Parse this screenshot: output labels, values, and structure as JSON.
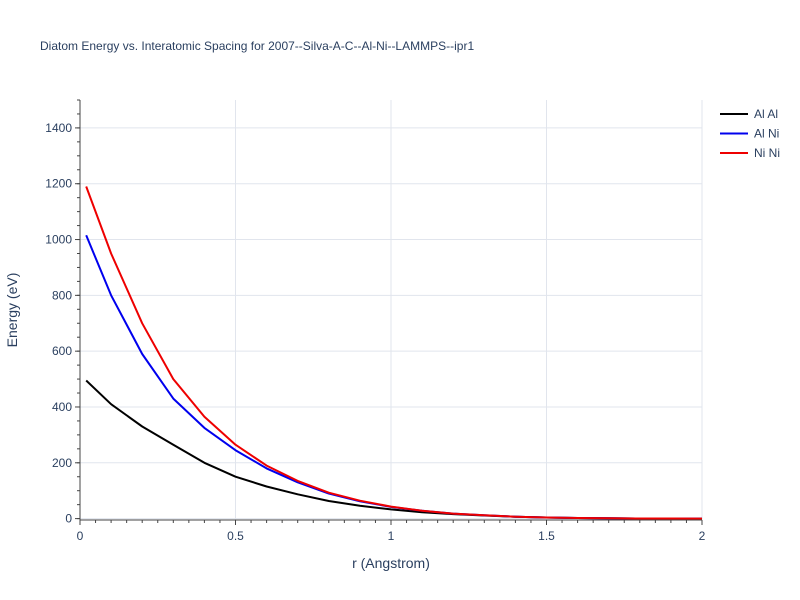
{
  "chart_data": {
    "type": "line",
    "title": "Diatom Energy vs. Interatomic Spacing for 2007--Silva-A-C--Al-Ni--LAMMPS--ipr1",
    "xlabel": "r (Angstrom)",
    "ylabel": "Energy (eV)",
    "xlim": [
      0,
      2
    ],
    "ylim": [
      -5,
      1500
    ],
    "x_ticks": [
      0,
      0.5,
      1,
      1.5,
      2
    ],
    "x_tick_labels": [
      "0",
      "0.5",
      "1",
      "1.5",
      "2"
    ],
    "y_ticks": [
      0,
      200,
      400,
      600,
      800,
      1000,
      1200,
      1400
    ],
    "y_tick_labels": [
      "0",
      "200",
      "400",
      "600",
      "800",
      "1000",
      "1200",
      "1400"
    ],
    "grid": true,
    "legend_position": "top-right",
    "series": [
      {
        "name": "Al Al",
        "color": "#000000",
        "x": [
          0.02,
          0.1,
          0.2,
          0.3,
          0.4,
          0.5,
          0.6,
          0.7,
          0.8,
          0.9,
          1.0,
          1.1,
          1.2,
          1.3,
          1.4,
          1.5,
          1.6,
          1.7,
          1.8,
          1.9,
          2.0
        ],
        "y": [
          495,
          410,
          330,
          265,
          200,
          150,
          115,
          87,
          63,
          46,
          33,
          23,
          16,
          11,
          7,
          4,
          2,
          1,
          0.5,
          0.2,
          0
        ]
      },
      {
        "name": "Al Ni",
        "color": "#0000ee",
        "x": [
          0.02,
          0.1,
          0.2,
          0.3,
          0.4,
          0.5,
          0.6,
          0.7,
          0.8,
          0.9,
          1.0,
          1.1,
          1.2,
          1.3,
          1.4,
          1.5,
          1.6,
          1.7,
          1.8,
          1.9,
          2.0
        ],
        "y": [
          1015,
          800,
          590,
          430,
          325,
          245,
          180,
          130,
          90,
          62,
          42,
          28,
          18,
          12,
          7,
          4,
          2,
          1,
          0.5,
          0.2,
          0
        ]
      },
      {
        "name": "Ni Ni",
        "color": "#ee0000",
        "x": [
          0.02,
          0.1,
          0.2,
          0.3,
          0.4,
          0.5,
          0.6,
          0.7,
          0.8,
          0.9,
          1.0,
          1.1,
          1.2,
          1.3,
          1.4,
          1.5,
          1.6,
          1.7,
          1.8,
          1.9,
          2.0
        ],
        "y": [
          1190,
          950,
          700,
          500,
          365,
          265,
          190,
          135,
          93,
          64,
          43,
          28,
          18,
          12,
          7,
          4,
          2,
          1,
          0.5,
          0.2,
          0
        ]
      }
    ]
  }
}
